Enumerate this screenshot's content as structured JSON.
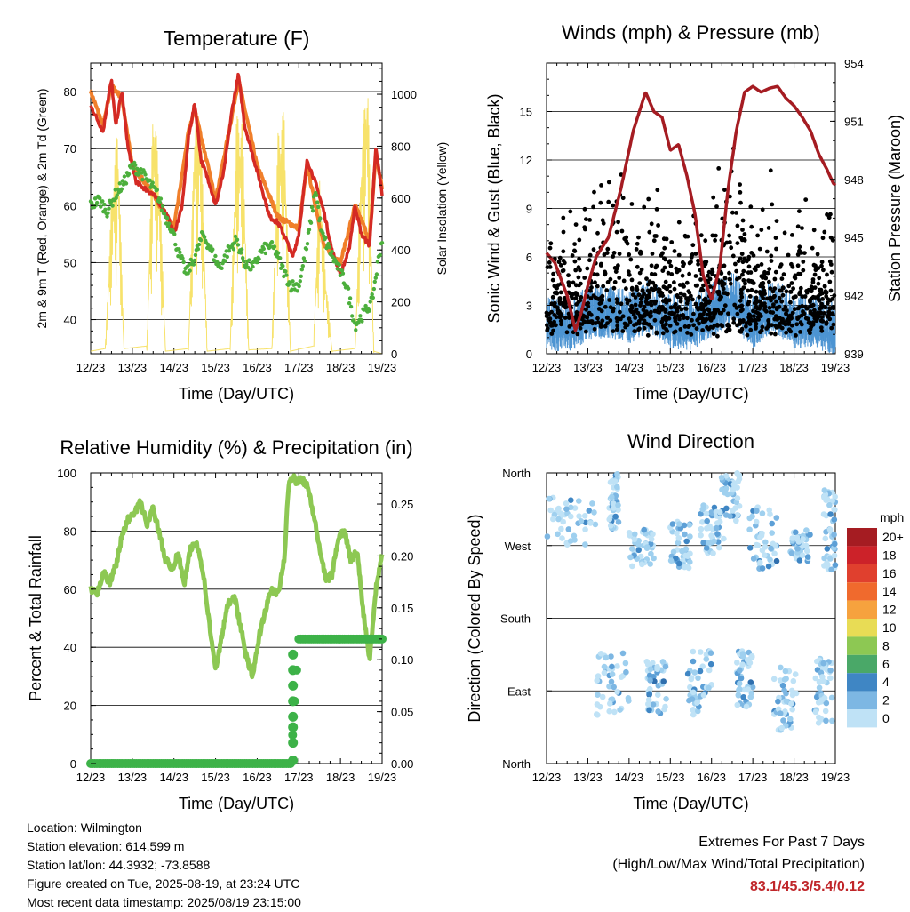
{
  "chart_data": [
    {
      "type": "line",
      "title": "Temperature (F)",
      "xlabel": "Time (Day/UTC)",
      "ylabel": "2m & 9m T (Red, Orange) & 2m Td (Green)",
      "ylabel_right": "Solar Insolation (Yellow)",
      "x_ticks": [
        "12/23",
        "13/23",
        "14/23",
        "15/23",
        "16/23",
        "17/23",
        "18/23",
        "19/23"
      ],
      "ylim": [
        34,
        85
      ],
      "y_ticks": [
        40,
        50,
        60,
        70,
        80
      ],
      "ylim_right": [
        0,
        1120
      ],
      "y_ticks_right": [
        0,
        200,
        400,
        600,
        800,
        1000
      ],
      "grid": true,
      "series": [
        {
          "name": "2m T",
          "color": "#d42a24",
          "x": [
            0,
            0.1,
            0.3,
            0.4,
            0.5,
            0.6,
            0.75,
            0.9,
            1.1,
            1.3,
            1.5,
            1.7,
            1.85,
            2.0,
            2.2,
            2.35,
            2.5,
            2.65,
            2.85,
            3.0,
            3.2,
            3.4,
            3.55,
            3.7,
            3.85,
            4.0,
            4.15,
            4.3,
            4.5,
            4.7,
            4.85,
            5.0,
            5.2,
            5.4,
            5.6,
            5.8,
            6.0,
            6.2,
            6.35,
            6.5,
            6.7,
            6.85,
            7.0
          ],
          "values": [
            77.5,
            76,
            73,
            78,
            82,
            74,
            80,
            70,
            64,
            63,
            62,
            60,
            58,
            55,
            60,
            72,
            78,
            68,
            64,
            60,
            66,
            77,
            83,
            74,
            70,
            66,
            62,
            58,
            57,
            54,
            51,
            55,
            68,
            64,
            59,
            52,
            48,
            52,
            60,
            55,
            53,
            70,
            62
          ]
        },
        {
          "name": "9m T",
          "color": "#f07f2a",
          "x": [
            0,
            0.3,
            0.5,
            0.75,
            1.0,
            1.5,
            2.0,
            2.35,
            2.5,
            3.0,
            3.4,
            3.55,
            4.0,
            4.5,
            5.0,
            5.2,
            5.6,
            6.0,
            6.35,
            6.7,
            6.85,
            7.0
          ],
          "values": [
            80,
            74,
            81,
            79,
            67,
            62,
            56,
            73,
            77,
            61,
            76,
            82,
            67,
            58,
            56,
            67,
            53,
            50,
            60,
            54,
            69,
            63
          ]
        },
        {
          "name": "2m Td",
          "color": "#4caf3c",
          "x": [
            0,
            0.2,
            0.4,
            0.6,
            0.8,
            1.0,
            1.2,
            1.4,
            1.6,
            1.8,
            1.95,
            2.1,
            2.3,
            2.5,
            2.7,
            2.9,
            3.1,
            3.3,
            3.5,
            3.7,
            3.9,
            4.1,
            4.3,
            4.45,
            4.6,
            4.8,
            5.0,
            5.2,
            5.4,
            5.55,
            5.75,
            5.95,
            6.15,
            6.35,
            6.55,
            6.75,
            6.9,
            7.0
          ],
          "values": [
            60,
            61,
            59,
            62,
            64,
            67,
            66,
            64,
            62,
            58,
            56,
            52,
            48,
            51,
            55,
            52,
            49,
            52,
            54,
            50,
            49,
            52,
            53,
            52,
            49,
            46,
            46,
            53,
            63,
            55,
            52,
            49,
            46,
            39,
            41,
            43,
            50,
            54
          ]
        },
        {
          "name": "Solar Insolation",
          "color": "#f7e26b",
          "axis": "right",
          "x": [
            0,
            0.35,
            0.5,
            0.65,
            0.8,
            1.35,
            1.5,
            1.65,
            1.8,
            2.35,
            2.5,
            2.65,
            2.8,
            3.35,
            3.5,
            3.65,
            3.8,
            4.35,
            4.5,
            4.65,
            4.8,
            5.35,
            5.5,
            5.65,
            5.8,
            6.35,
            6.5,
            6.65,
            6.8,
            7.0
          ],
          "values": [
            10,
            20,
            600,
            900,
            20,
            30,
            1000,
            700,
            10,
            20,
            950,
            900,
            10,
            20,
            920,
            900,
            15,
            20,
            850,
            950,
            10,
            30,
            700,
            300,
            10,
            20,
            800,
            1100,
            10,
            0
          ]
        }
      ]
    },
    {
      "type": "scatter",
      "title": "Winds (mph) & Pressure (mb)",
      "xlabel": "Time (Day/UTC)",
      "ylabel": "Sonic Wind & Gust (Blue, Black)",
      "ylabel_right": "Station Pressure (Maroon)",
      "x_ticks": [
        "12/23",
        "13/23",
        "14/23",
        "15/23",
        "16/23",
        "17/23",
        "18/23",
        "19/23"
      ],
      "ylim": [
        0,
        18
      ],
      "y_ticks": [
        0,
        3,
        6,
        9,
        12,
        15
      ],
      "ylim_right": [
        939,
        954
      ],
      "y_ticks_right": [
        939,
        942,
        945,
        948,
        951,
        954
      ],
      "grid": true,
      "gust_profile": {
        "x": [
          0,
          0.3,
          0.6,
          0.9,
          1.2,
          1.5,
          1.8,
          2.1,
          2.4,
          2.7,
          3.0,
          3.3,
          3.6,
          3.9,
          4.2,
          4.5,
          4.8,
          5.1,
          5.4,
          5.7,
          6.0,
          6.3,
          6.6,
          6.9,
          7.0
        ],
        "values": [
          3,
          2.5,
          6,
          4,
          5,
          8,
          7,
          4,
          3.5,
          5,
          3,
          3.5,
          5,
          3,
          7,
          9,
          5,
          4,
          7,
          4,
          3.5,
          4,
          3,
          5,
          2
        ]
      },
      "wind_profile": {
        "x": [
          0,
          0.5,
          1.0,
          1.5,
          2.0,
          2.5,
          3.0,
          3.5,
          4.0,
          4.5,
          5.0,
          5.5,
          6.0,
          6.5,
          7.0
        ],
        "values": [
          1.5,
          1.2,
          2,
          2.2,
          1.8,
          2.5,
          1.5,
          1.4,
          2.2,
          3,
          1.5,
          2.6,
          1.5,
          1.6,
          1
        ]
      },
      "series": [
        {
          "name": "Station Pressure",
          "color": "#a51c22",
          "axis": "right",
          "x": [
            0,
            0.2,
            0.5,
            0.7,
            0.85,
            1.0,
            1.2,
            1.5,
            1.8,
            2.1,
            2.4,
            2.6,
            2.8,
            3.0,
            3.2,
            3.4,
            3.6,
            3.8,
            4.0,
            4.2,
            4.4,
            4.6,
            4.8,
            5.0,
            5.2,
            5.4,
            5.6,
            5.8,
            6.0,
            6.2,
            6.4,
            6.6,
            6.8,
            6.95,
            7.0
          ],
          "values": [
            944.2,
            943.7,
            942,
            940.2,
            941.2,
            942.5,
            944,
            945,
            947.5,
            950.5,
            952.5,
            951.5,
            951.2,
            949.5,
            949.8,
            948.2,
            946.2,
            943,
            941.8,
            943.5,
            947.5,
            950.5,
            952.5,
            952.8,
            952.5,
            952.7,
            952.8,
            952.2,
            951.8,
            951.2,
            950.5,
            949.3,
            948.5,
            947.8,
            947.7
          ]
        }
      ]
    },
    {
      "type": "line",
      "title": "Relative Humidity (%) & Precipitation (in)",
      "xlabel": "Time (Day/UTC)",
      "ylabel": "Percent & Total Rainfall",
      "x_ticks": [
        "12/23",
        "13/23",
        "14/23",
        "15/23",
        "16/23",
        "17/23",
        "18/23",
        "19/23"
      ],
      "ylim": [
        0,
        100
      ],
      "y_ticks": [
        0,
        20,
        40,
        60,
        80,
        100
      ],
      "ylim_right": [
        0,
        0.28
      ],
      "y_ticks_right": [
        "0.00",
        "0.05",
        "0.10",
        "0.15",
        "0.20",
        "0.25"
      ],
      "grid": true,
      "series": [
        {
          "name": "Relative Humidity",
          "color": "#8dc853",
          "x": [
            0,
            0.15,
            0.3,
            0.45,
            0.6,
            0.75,
            0.9,
            1.05,
            1.2,
            1.35,
            1.5,
            1.65,
            1.8,
            1.95,
            2.1,
            2.25,
            2.4,
            2.55,
            2.7,
            2.85,
            3.0,
            3.15,
            3.3,
            3.45,
            3.6,
            3.75,
            3.9,
            4.05,
            4.2,
            4.35,
            4.5,
            4.65,
            4.75,
            4.85,
            4.95,
            5.05,
            5.2,
            5.35,
            5.5,
            5.65,
            5.8,
            5.95,
            6.1,
            6.25,
            6.4,
            6.55,
            6.7,
            6.85,
            7.0
          ],
          "values": [
            60,
            58,
            66,
            62,
            68,
            78,
            84,
            86,
            90,
            82,
            88,
            79,
            70,
            67,
            72,
            62,
            74,
            76,
            66,
            48,
            32,
            44,
            55,
            58,
            47,
            36,
            30,
            44,
            53,
            60,
            58,
            70,
            95,
            99,
            97,
            98,
            96,
            86,
            74,
            63,
            65,
            78,
            80,
            70,
            73,
            52,
            36,
            60,
            73
          ]
        },
        {
          "name": "Precipitation",
          "color": "#3db248",
          "axis": "right",
          "x": [
            0,
            1,
            2,
            3,
            4,
            4.8,
            4.84,
            4.86,
            4.88,
            4.9,
            4.92,
            4.95,
            5.0,
            5.5,
            6.0,
            6.5,
            7.0
          ],
          "values": [
            0,
            0,
            0,
            0,
            0,
            0,
            0.02,
            0.035,
            0.045,
            0.06,
            0.075,
            0.09,
            0.12,
            0.12,
            0.12,
            0.12,
            0.12
          ]
        }
      ]
    },
    {
      "type": "scatter",
      "title": "Wind Direction",
      "xlabel": "Time (Day/UTC)",
      "ylabel": "Direction (Colored By Speed)",
      "x_ticks": [
        "12/23",
        "13/23",
        "14/23",
        "15/23",
        "16/23",
        "17/23",
        "18/23",
        "19/23"
      ],
      "y_ticks": [
        "North",
        "West",
        "South",
        "East",
        "North"
      ],
      "ylim": [
        0,
        360
      ],
      "grid": true,
      "colorbar": {
        "title": "mph",
        "labels": [
          "20+",
          "18",
          "16",
          "14",
          "12",
          "10",
          "8",
          "6",
          "4",
          "2",
          "0"
        ],
        "colors": [
          "#a51c22",
          "#cc2229",
          "#e0402e",
          "#f06a2d",
          "#f6a23e",
          "#e8dc55",
          "#8dc853",
          "#4aa868",
          "#3f86c4",
          "#7db7e3",
          "#bfe2f6"
        ]
      },
      "clusters": [
        {
          "x": [
            0,
            1.2
          ],
          "dir": [
            270,
            330
          ]
        },
        {
          "x": [
            1.2,
            2.0
          ],
          "dir": [
            60,
            140
          ]
        },
        {
          "x": [
            1.5,
            1.75
          ],
          "dir": [
            290,
            360
          ]
        },
        {
          "x": [
            2.0,
            2.6
          ],
          "dir": [
            240,
            290
          ]
        },
        {
          "x": [
            2.4,
            2.9
          ],
          "dir": [
            60,
            130
          ]
        },
        {
          "x": [
            3.0,
            3.5
          ],
          "dir": [
            240,
            300
          ]
        },
        {
          "x": [
            3.4,
            4.0
          ],
          "dir": [
            60,
            140
          ]
        },
        {
          "x": [
            3.7,
            4.3
          ],
          "dir": [
            260,
            320
          ]
        },
        {
          "x": [
            4.2,
            4.7
          ],
          "dir": [
            300,
            360
          ]
        },
        {
          "x": [
            4.6,
            5.0
          ],
          "dir": [
            70,
            140
          ]
        },
        {
          "x": [
            4.9,
            5.6
          ],
          "dir": [
            240,
            320
          ]
        },
        {
          "x": [
            5.5,
            6.1
          ],
          "dir": [
            40,
            120
          ]
        },
        {
          "x": [
            5.9,
            6.4
          ],
          "dir": [
            250,
            290
          ]
        },
        {
          "x": [
            6.5,
            6.95
          ],
          "dir": [
            50,
            130
          ]
        },
        {
          "x": [
            6.7,
            7.0
          ],
          "dir": [
            240,
            340
          ]
        }
      ]
    }
  ],
  "info": {
    "location": "Location: Wilmington",
    "elevation": "Station elevation: 614.599 m",
    "latlon": "Station lat/lon: 44.3932; -73.8588",
    "created": "Figure created on Tue, 2025-08-19, at 23:24 UTC",
    "recent": "Most recent data timestamp: 2025/08/19 23:15:00"
  },
  "extremes": {
    "line1": "Extremes For Past 7 Days",
    "line2": "(High/Low/Max Wind/Total Precipitation)",
    "values": "83.1/45.3/5.4/0.12"
  }
}
